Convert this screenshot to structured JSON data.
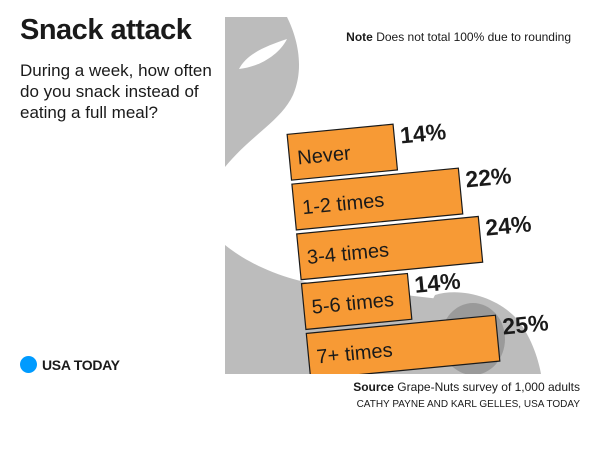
{
  "header": {
    "title": "Snack attack",
    "question": "During a week, how often do you snack instead of eating a full meal?"
  },
  "note": {
    "label": "Note",
    "text": "Does not total 100% due to rounding"
  },
  "footer": {
    "source_label": "Source",
    "source_text": "Grape-Nuts survey of 1,000 adults",
    "credit": "CATHY PAYNE AND KARL GELLES, USA TODAY",
    "logo_text": "USA TODAY"
  },
  "colors": {
    "bar": "#f79a35",
    "hand": "#bcbcbc",
    "accent": "#009bff"
  },
  "chart_data": {
    "type": "bar",
    "orientation": "horizontal",
    "categories": [
      "Never",
      "1-2 times",
      "3-4 times",
      "5-6 times",
      "7+ times"
    ],
    "values": [
      14,
      22,
      24,
      14,
      25
    ],
    "value_labels": [
      "14%",
      "22%",
      "24%",
      "14%",
      "25%"
    ],
    "title": "Snack attack",
    "xlabel": "",
    "ylabel": "",
    "grid": false
  }
}
